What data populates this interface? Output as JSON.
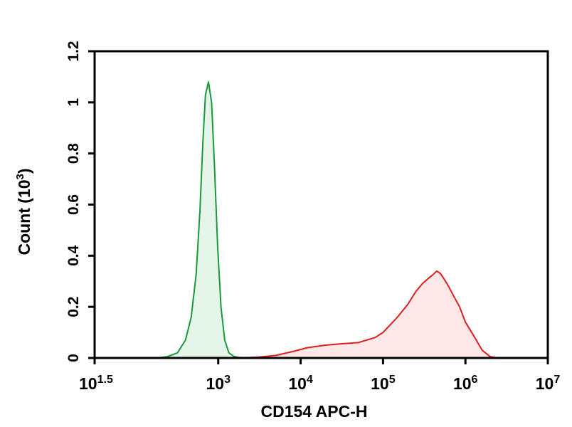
{
  "chart_data": {
    "type": "area",
    "xlabel": "CD154 APC-H",
    "ylabel": "Count (10",
    "ylabel_exponent": "3",
    "ylabel_close": ")",
    "x_scale": "log",
    "xlim": [
      31.6,
      10000000
    ],
    "ylim": [
      0,
      1.2
    ],
    "grid": false,
    "legend": "none",
    "x_ticks": [
      {
        "base": "10",
        "exp": "1.5",
        "value": 31.6
      },
      {
        "base": "10",
        "exp": "3",
        "value": 1000
      },
      {
        "base": "10",
        "exp": "4",
        "value": 10000
      },
      {
        "base": "10",
        "exp": "5",
        "value": 100000
      },
      {
        "base": "10",
        "exp": "6",
        "value": 1000000
      },
      {
        "base": "10",
        "exp": "7",
        "value": 10000000
      }
    ],
    "y_ticks": [
      {
        "label": "0",
        "value": 0
      },
      {
        "label": "0.2",
        "value": 0.2
      },
      {
        "label": "0.4",
        "value": 0.4
      },
      {
        "label": "0.6",
        "value": 0.6
      },
      {
        "label": "0.8",
        "value": 0.8
      },
      {
        "label": "1",
        "value": 1.0
      },
      {
        "label": "1.2",
        "value": 1.2
      }
    ],
    "series": [
      {
        "color": "#1a9a3c",
        "fill": "#e6f5ea",
        "x": [
          180,
          240,
          320,
          400,
          470,
          540,
          600,
          650,
          700,
          760,
          830,
          900,
          980,
          1080,
          1200,
          1350,
          1550,
          1800,
          2100
        ],
        "y": [
          0,
          0.005,
          0.02,
          0.07,
          0.16,
          0.33,
          0.58,
          0.84,
          1.03,
          1.08,
          1.0,
          0.75,
          0.45,
          0.2,
          0.07,
          0.02,
          0.006,
          0.002,
          0
        ]
      },
      {
        "color": "#e01e1e",
        "fill": "#fde7e7",
        "x": [
          1800,
          3000,
          5000,
          8000,
          12000,
          20000,
          30000,
          50000,
          80000,
          100000,
          150000,
          200000,
          250000,
          300000,
          350000,
          400000,
          450000,
          500000,
          600000,
          700000,
          850000,
          1000000,
          1300000,
          1600000,
          2000000,
          2500000
        ],
        "y": [
          0,
          0.003,
          0.01,
          0.025,
          0.04,
          0.05,
          0.055,
          0.06,
          0.08,
          0.1,
          0.16,
          0.21,
          0.26,
          0.29,
          0.31,
          0.325,
          0.34,
          0.33,
          0.29,
          0.25,
          0.2,
          0.14,
          0.08,
          0.03,
          0.005,
          0
        ]
      }
    ]
  }
}
